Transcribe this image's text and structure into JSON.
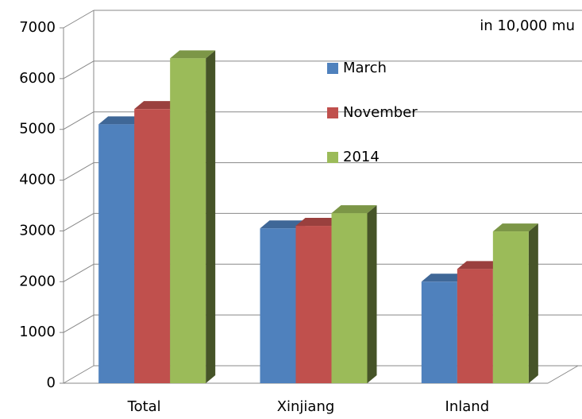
{
  "chart_data": {
    "type": "bar3d",
    "annotation": "in 10,000 mu",
    "categories": [
      "Total",
      "Xinjiang",
      "Inland"
    ],
    "series": [
      {
        "name": "March",
        "color": "#4f81bd",
        "values": [
          5100,
          3050,
          2000
        ]
      },
      {
        "name": "November",
        "color": "#c0504d",
        "values": [
          5400,
          3100,
          2250
        ]
      },
      {
        "name": "2014",
        "color": "#9bbb59",
        "values": [
          6400,
          3350,
          2990
        ]
      }
    ],
    "ylim": [
      0,
      7000
    ],
    "yticks": [
      0,
      1000,
      2000,
      3000,
      4000,
      5000,
      6000,
      7000
    ],
    "grid": true,
    "legend": "center"
  }
}
